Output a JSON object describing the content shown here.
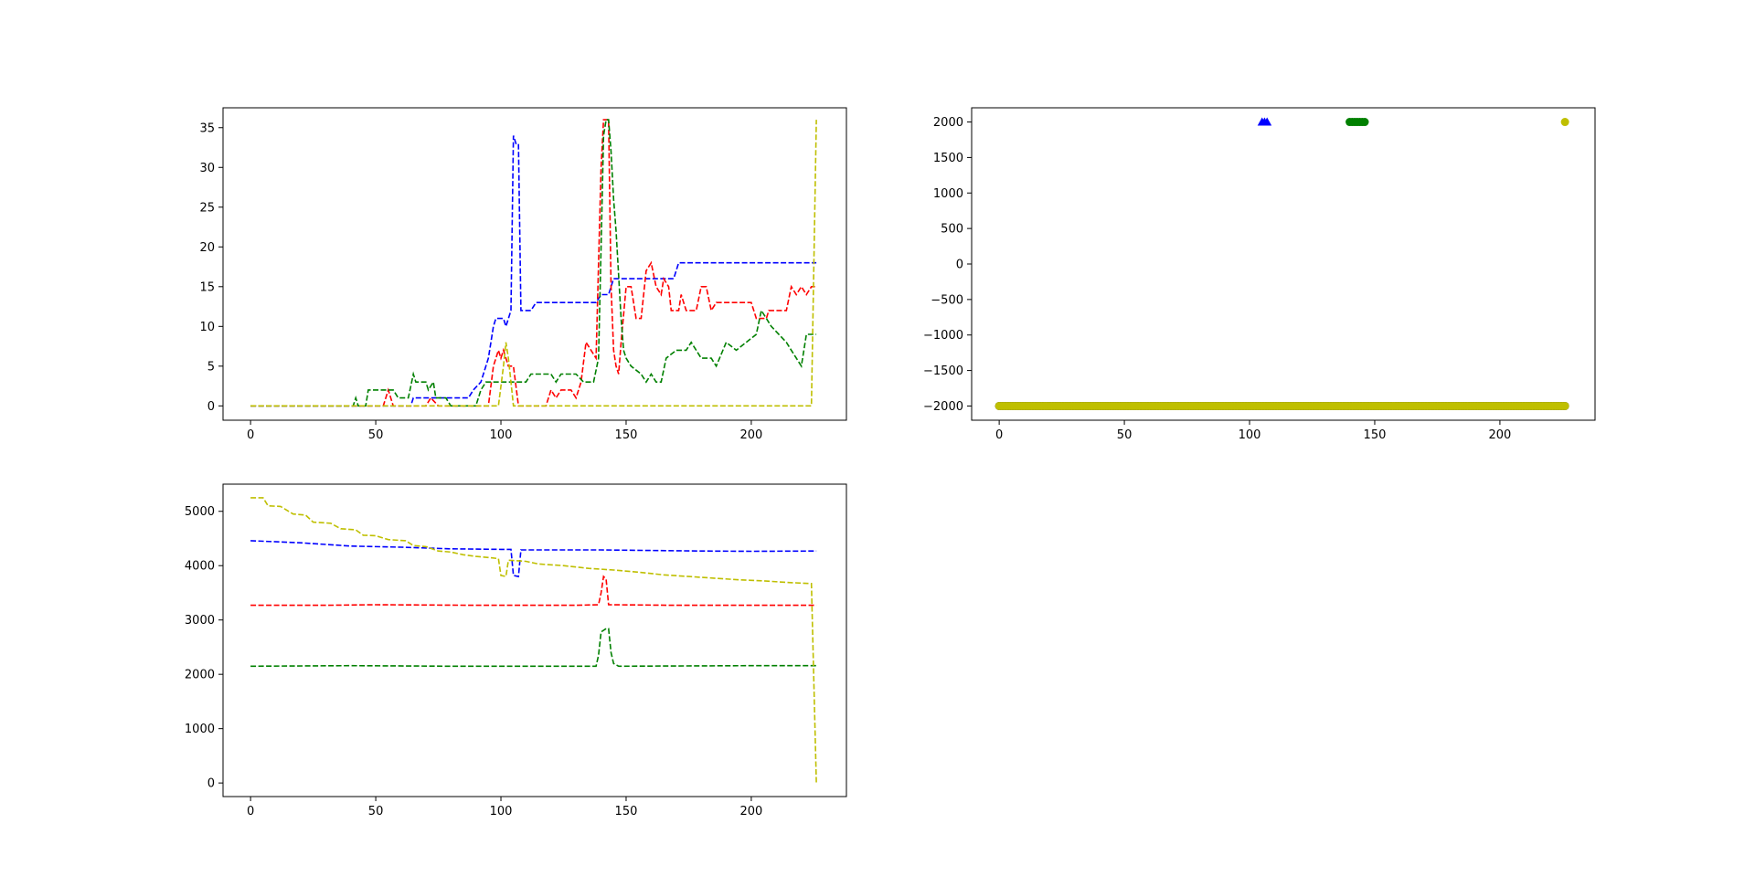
{
  "chart_data": [
    {
      "type": "line",
      "xlim": [
        -11,
        238
      ],
      "ylim": [
        -1.8,
        37.5
      ],
      "xticks": [
        0,
        50,
        100,
        150,
        200
      ],
      "yticks": [
        0,
        5,
        10,
        15,
        20,
        25,
        30,
        35
      ],
      "series": [
        {
          "color": "#0000ff",
          "style": "dashed",
          "points": [
            [
              0,
              0
            ],
            [
              64,
              0
            ],
            [
              65,
              1
            ],
            [
              87,
              1
            ],
            [
              89,
              2
            ],
            [
              92,
              3
            ],
            [
              95,
              6
            ],
            [
              97,
              10
            ],
            [
              98,
              11
            ],
            [
              101,
              11
            ],
            [
              102,
              10
            ],
            [
              104,
              12
            ],
            [
              105,
              34
            ],
            [
              106,
              33
            ],
            [
              107,
              33
            ],
            [
              108,
              12
            ],
            [
              112,
              12
            ],
            [
              114,
              13
            ],
            [
              138,
              13
            ],
            [
              140,
              14
            ],
            [
              143,
              14
            ],
            [
              145,
              16
            ],
            [
              169,
              16
            ],
            [
              171,
              18
            ],
            [
              226,
              18
            ]
          ]
        },
        {
          "color": "#ff0000",
          "style": "dashed",
          "points": [
            [
              0,
              0
            ],
            [
              53,
              0
            ],
            [
              55,
              2
            ],
            [
              57,
              0
            ],
            [
              70,
              0
            ],
            [
              72,
              1
            ],
            [
              75,
              0
            ],
            [
              95,
              0
            ],
            [
              97,
              5
            ],
            [
              99,
              7
            ],
            [
              100,
              6
            ],
            [
              101,
              7
            ],
            [
              103,
              5
            ],
            [
              105,
              5
            ],
            [
              107,
              0
            ],
            [
              118,
              0
            ],
            [
              120,
              2
            ],
            [
              122,
              1
            ],
            [
              124,
              2
            ],
            [
              128,
              2
            ],
            [
              130,
              1
            ],
            [
              132,
              3
            ],
            [
              134,
              8
            ],
            [
              136,
              7
            ],
            [
              138,
              6
            ],
            [
              140,
              30
            ],
            [
              141,
              36
            ],
            [
              143,
              36
            ],
            [
              144,
              15
            ],
            [
              145,
              7
            ],
            [
              146,
              5
            ],
            [
              147,
              4
            ],
            [
              148,
              8
            ],
            [
              150,
              15
            ],
            [
              152,
              15
            ],
            [
              154,
              11
            ],
            [
              156,
              11
            ],
            [
              158,
              17
            ],
            [
              160,
              18
            ],
            [
              162,
              15
            ],
            [
              164,
              14
            ],
            [
              165,
              16
            ],
            [
              167,
              15
            ],
            [
              168,
              12
            ],
            [
              171,
              12
            ],
            [
              172,
              14
            ],
            [
              174,
              12
            ],
            [
              178,
              12
            ],
            [
              180,
              15
            ],
            [
              182,
              15
            ],
            [
              184,
              12
            ],
            [
              186,
              13
            ],
            [
              200,
              13
            ],
            [
              202,
              11
            ],
            [
              206,
              11
            ],
            [
              207,
              12
            ],
            [
              214,
              12
            ],
            [
              216,
              15
            ],
            [
              218,
              14
            ],
            [
              220,
              15
            ],
            [
              222,
              14
            ],
            [
              224,
              15
            ],
            [
              226,
              15
            ]
          ]
        },
        {
          "color": "#008000",
          "style": "dashed",
          "points": [
            [
              0,
              0
            ],
            [
              41,
              0
            ],
            [
              42,
              1
            ],
            [
              43,
              0
            ],
            [
              46,
              0
            ],
            [
              47,
              2
            ],
            [
              57,
              2
            ],
            [
              59,
              1
            ],
            [
              63,
              1
            ],
            [
              65,
              4
            ],
            [
              66,
              3
            ],
            [
              70,
              3
            ],
            [
              71,
              2
            ],
            [
              73,
              3
            ],
            [
              74,
              1
            ],
            [
              78,
              1
            ],
            [
              80,
              0
            ],
            [
              90,
              0
            ],
            [
              92,
              2
            ],
            [
              94,
              3
            ],
            [
              110,
              3
            ],
            [
              112,
              4
            ],
            [
              120,
              4
            ],
            [
              122,
              3
            ],
            [
              124,
              4
            ],
            [
              130,
              4
            ],
            [
              133,
              3
            ],
            [
              137,
              3
            ],
            [
              139,
              6
            ],
            [
              140,
              20
            ],
            [
              141,
              34
            ],
            [
              142,
              36
            ],
            [
              143,
              36
            ],
            [
              144,
              32
            ],
            [
              145,
              26
            ],
            [
              146,
              22
            ],
            [
              148,
              11
            ],
            [
              149,
              7
            ],
            [
              150,
              6
            ],
            [
              152,
              5
            ],
            [
              156,
              4
            ],
            [
              158,
              3
            ],
            [
              160,
              4
            ],
            [
              162,
              3
            ],
            [
              164,
              3
            ],
            [
              166,
              6
            ],
            [
              170,
              7
            ],
            [
              174,
              7
            ],
            [
              176,
              8
            ],
            [
              180,
              6
            ],
            [
              184,
              6
            ],
            [
              186,
              5
            ],
            [
              190,
              8
            ],
            [
              194,
              7
            ],
            [
              198,
              8
            ],
            [
              202,
              9
            ],
            [
              204,
              12
            ],
            [
              206,
              11
            ],
            [
              208,
              10
            ],
            [
              214,
              8
            ],
            [
              216,
              7
            ],
            [
              218,
              6
            ],
            [
              220,
              5
            ],
            [
              222,
              9
            ],
            [
              226,
              9
            ]
          ]
        },
        {
          "color": "#bfbf00",
          "style": "dashed",
          "points": [
            [
              0,
              0
            ],
            [
              99,
              0
            ],
            [
              101,
              5
            ],
            [
              102,
              8
            ],
            [
              103,
              6
            ],
            [
              104,
              3
            ],
            [
              105,
              0
            ],
            [
              224,
              0
            ],
            [
              226,
              36
            ]
          ]
        }
      ]
    },
    {
      "type": "scatter",
      "xlim": [
        -11,
        238
      ],
      "ylim": [
        -2200,
        2200
      ],
      "xticks": [
        0,
        50,
        100,
        150,
        200
      ],
      "yticks": [
        2000,
        1500,
        1000,
        500,
        0,
        -500,
        -1000,
        -1500,
        -2000
      ],
      "series": [
        {
          "color": "#000000",
          "marker": "circle",
          "y": -2000,
          "x_range": [
            0,
            226
          ]
        },
        {
          "color": "#bfbf00",
          "marker": "circle",
          "y": -2000,
          "x_range": [
            0,
            226
          ]
        },
        {
          "color": "#0000ff",
          "marker": "triangle",
          "y": 2000,
          "x": [
            105,
            106,
            107
          ]
        },
        {
          "color": "#008000",
          "marker": "circle",
          "y": 2000,
          "x": [
            140,
            141,
            142,
            143,
            144,
            145,
            146
          ]
        },
        {
          "color": "#bfbf00",
          "marker": "circle",
          "y": 2000,
          "x": [
            226
          ]
        }
      ]
    },
    {
      "type": "line",
      "xlim": [
        -11,
        238
      ],
      "ylim": [
        -250,
        5500
      ],
      "xticks": [
        0,
        50,
        100,
        150,
        200
      ],
      "yticks": [
        0,
        1000,
        2000,
        3000,
        4000,
        5000
      ],
      "series": [
        {
          "color": "#0000ff",
          "style": "dashed",
          "points": [
            [
              0,
              4460
            ],
            [
              20,
              4420
            ],
            [
              40,
              4360
            ],
            [
              60,
              4340
            ],
            [
              80,
              4310
            ],
            [
              100,
              4300
            ],
            [
              104,
              4300
            ],
            [
              105,
              3820
            ],
            [
              107,
              3800
            ],
            [
              108,
              4290
            ],
            [
              140,
              4290
            ],
            [
              160,
              4280
            ],
            [
              180,
              4270
            ],
            [
              200,
              4265
            ],
            [
              226,
              4270
            ]
          ]
        },
        {
          "color": "#ff0000",
          "style": "dashed",
          "points": [
            [
              0,
              3270
            ],
            [
              30,
              3270
            ],
            [
              50,
              3280
            ],
            [
              90,
              3270
            ],
            [
              130,
              3270
            ],
            [
              139,
              3280
            ],
            [
              140,
              3500
            ],
            [
              141,
              3800
            ],
            [
              142,
              3750
            ],
            [
              143,
              3280
            ],
            [
              170,
              3270
            ],
            [
              200,
              3270
            ],
            [
              226,
              3270
            ]
          ]
        },
        {
          "color": "#008000",
          "style": "dashed",
          "points": [
            [
              0,
              2150
            ],
            [
              40,
              2160
            ],
            [
              80,
              2150
            ],
            [
              120,
              2150
            ],
            [
              138,
              2150
            ],
            [
              139,
              2350
            ],
            [
              140,
              2780
            ],
            [
              142,
              2840
            ],
            [
              143,
              2840
            ],
            [
              144,
              2400
            ],
            [
              145,
              2200
            ],
            [
              147,
              2150
            ],
            [
              200,
              2160
            ],
            [
              226,
              2160
            ]
          ]
        },
        {
          "color": "#bfbf00",
          "style": "dashed",
          "points": [
            [
              0,
              5250
            ],
            [
              5,
              5250
            ],
            [
              7,
              5100
            ],
            [
              12,
              5090
            ],
            [
              17,
              4950
            ],
            [
              22,
              4930
            ],
            [
              25,
              4800
            ],
            [
              32,
              4780
            ],
            [
              36,
              4680
            ],
            [
              42,
              4660
            ],
            [
              45,
              4560
            ],
            [
              50,
              4550
            ],
            [
              55,
              4480
            ],
            [
              62,
              4460
            ],
            [
              65,
              4370
            ],
            [
              70,
              4350
            ],
            [
              75,
              4270
            ],
            [
              80,
              4250
            ],
            [
              85,
              4200
            ],
            [
              90,
              4170
            ],
            [
              95,
              4150
            ],
            [
              99,
              4130
            ],
            [
              100,
              3820
            ],
            [
              102,
              3800
            ],
            [
              103,
              4100
            ],
            [
              110,
              4080
            ],
            [
              115,
              4030
            ],
            [
              125,
              4000
            ],
            [
              135,
              3950
            ],
            [
              145,
              3920
            ],
            [
              155,
              3880
            ],
            [
              165,
              3830
            ],
            [
              175,
              3800
            ],
            [
              185,
              3770
            ],
            [
              195,
              3740
            ],
            [
              205,
              3720
            ],
            [
              215,
              3690
            ],
            [
              224,
              3670
            ],
            [
              226,
              0
            ]
          ]
        }
      ]
    }
  ]
}
